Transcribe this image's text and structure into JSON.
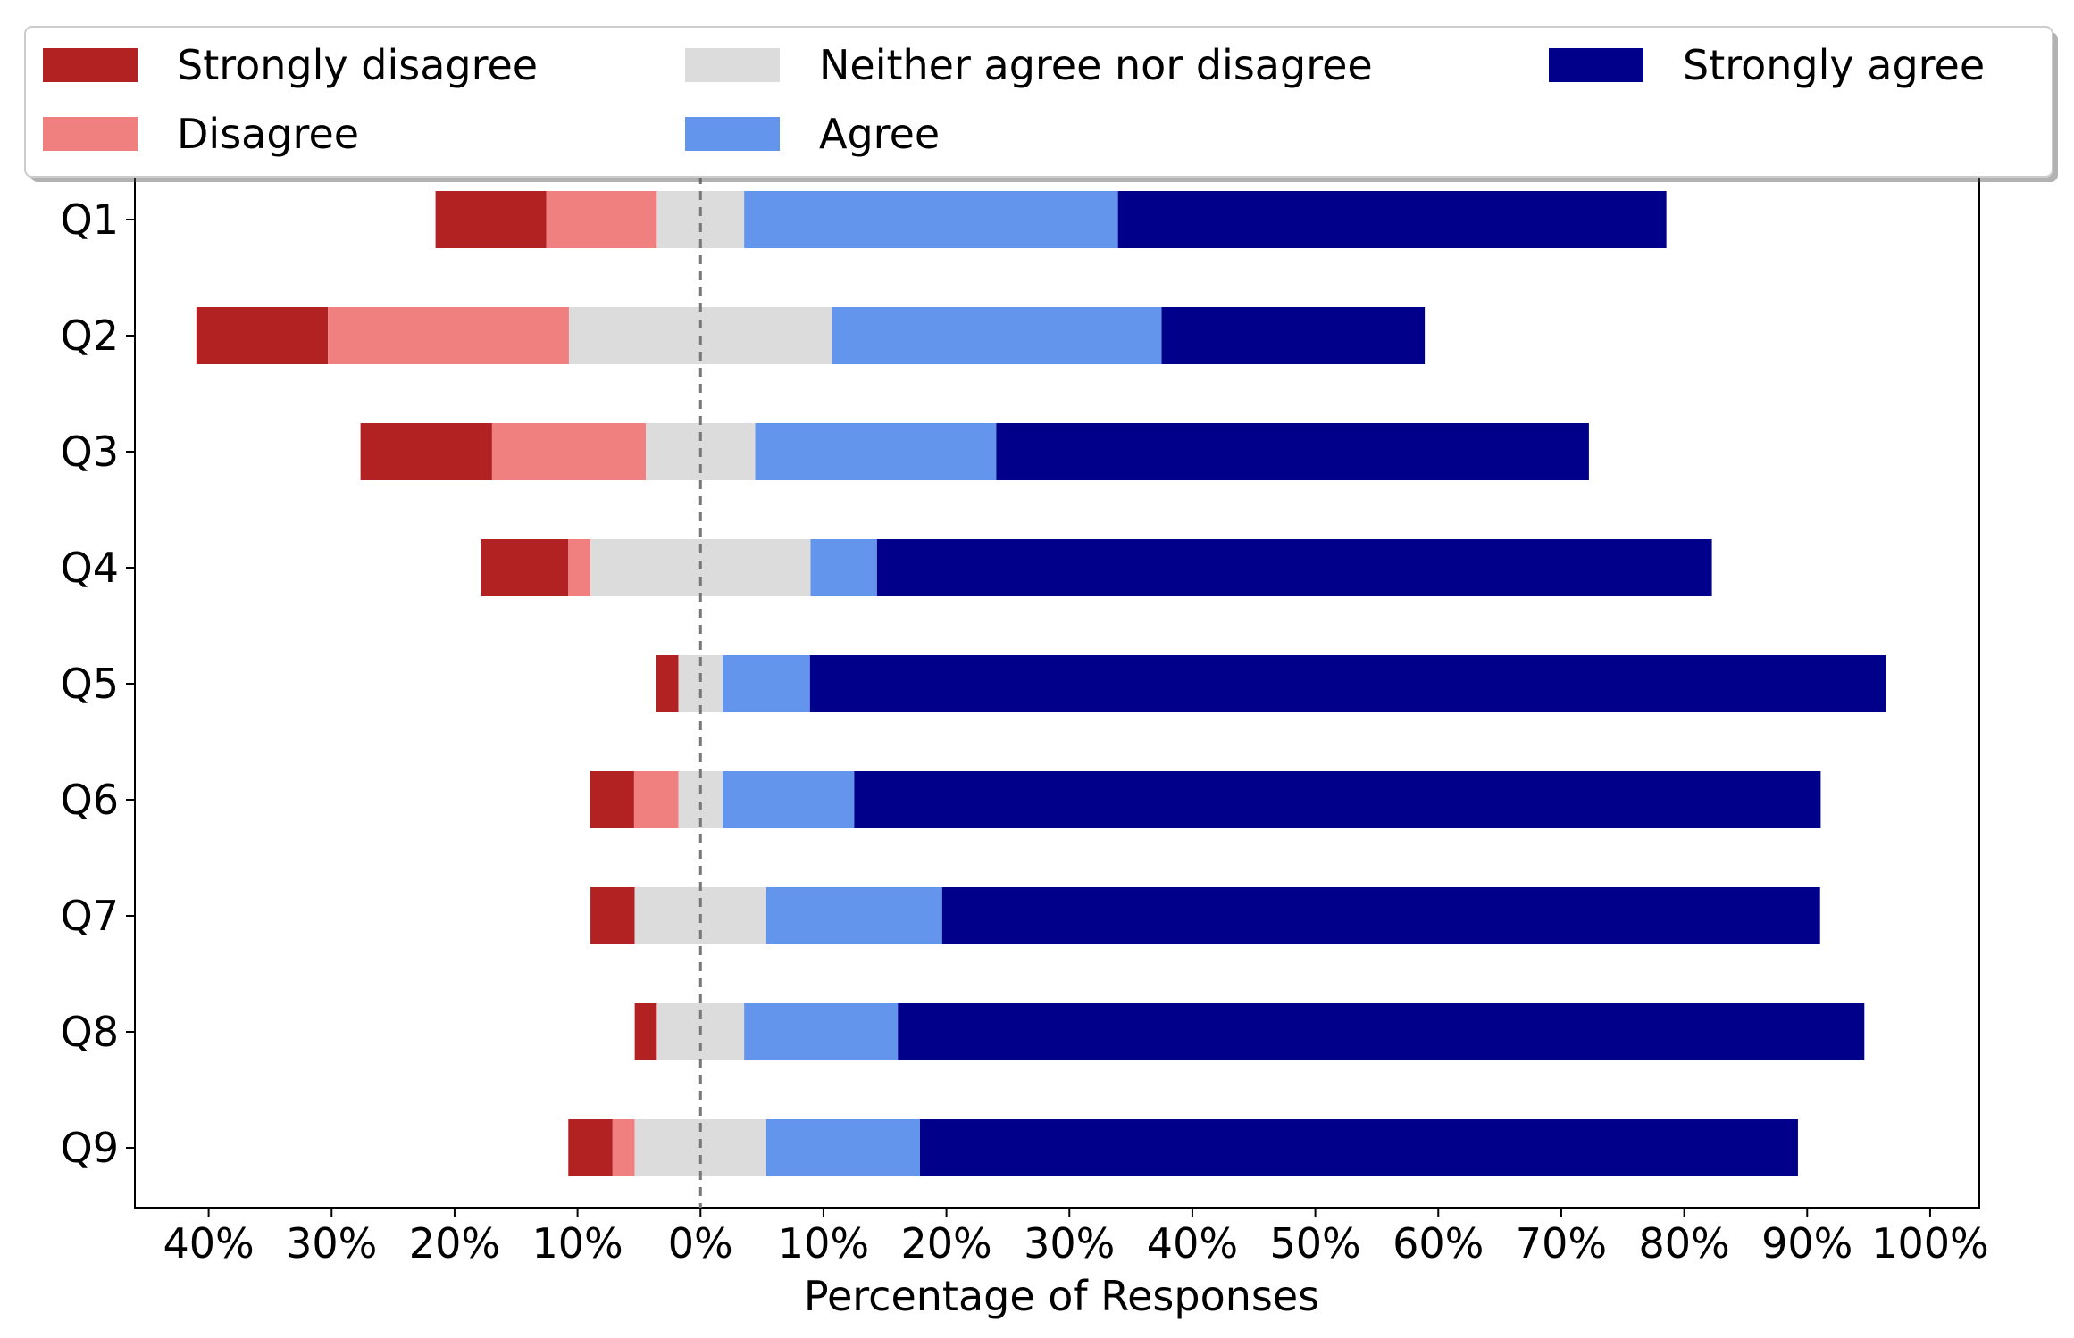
{
  "chart_data": {
    "type": "bar",
    "orientation": "horizontal-diverging-stacked",
    "title": "",
    "xlabel": "Percentage of Responses",
    "ylabel": "",
    "categories": [
      "Q1",
      "Q2",
      "Q3",
      "Q4",
      "Q5",
      "Q6",
      "Q7",
      "Q8",
      "Q9"
    ],
    "series": [
      {
        "name": "Strongly disagree",
        "color": "#b22222",
        "values": [
          9,
          10.7,
          10.7,
          7.1,
          1.8,
          3.6,
          3.6,
          1.8,
          3.6
        ]
      },
      {
        "name": "Disagree",
        "color": "#f08080",
        "values": [
          9,
          19.6,
          12.5,
          1.8,
          0,
          3.6,
          0,
          0,
          1.8
        ]
      },
      {
        "name": "Neither agree nor disagree",
        "color": "#dcdcdc",
        "values": [
          7.1,
          21.4,
          8.9,
          17.9,
          3.6,
          3.6,
          10.7,
          7.1,
          10.7
        ]
      },
      {
        "name": "Agree",
        "color": "#6495ed",
        "values": [
          30.4,
          26.8,
          19.6,
          5.4,
          7.1,
          10.7,
          14.3,
          12.5,
          12.5
        ]
      },
      {
        "name": "Strongly agree",
        "color": "#00008b",
        "values": [
          44.6,
          21.4,
          48.2,
          67.9,
          87.5,
          78.6,
          71.4,
          78.6,
          71.4
        ]
      }
    ],
    "centered_category": "Neither agree nor disagree",
    "xlim": [
      -46,
      104
    ],
    "xticks": [
      -40,
      -30,
      -20,
      -10,
      0,
      10,
      20,
      30,
      40,
      50,
      60,
      70,
      80,
      90,
      100
    ],
    "xtick_labels": [
      "40%",
      "30%",
      "20%",
      "10%",
      "0%",
      "10%",
      "20%",
      "30%",
      "40%",
      "50%",
      "60%",
      "70%",
      "80%",
      "90%",
      "100%"
    ],
    "zero_line": "dashed",
    "grid": false,
    "legend_position": "top"
  }
}
